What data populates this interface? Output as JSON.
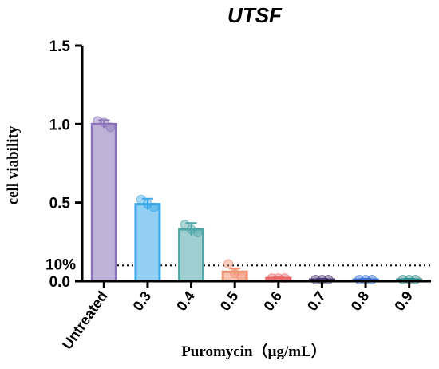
{
  "chart_data": {
    "type": "bar",
    "title": "UTSF",
    "xlabel": "Puromycin（µg/mL）",
    "ylabel": "cell viability",
    "ylim": [
      0,
      1.5
    ],
    "yticks": [
      "0.0",
      "0.5",
      "1.0",
      "1.5"
    ],
    "categories": [
      "Untreated",
      "0.3",
      "0.4",
      "0.5",
      "0.6",
      "0.7",
      "0.8",
      "0.9"
    ],
    "values": [
      1.0,
      0.49,
      0.33,
      0.06,
      0.02,
      0.01,
      0.01,
      0.01
    ],
    "errors": [
      0.025,
      0.035,
      0.04,
      0.02,
      0.005,
      0.005,
      0.005,
      0.005
    ],
    "points": [
      [
        1.02,
        1.01,
        0.98
      ],
      [
        0.52,
        0.49,
        0.47
      ],
      [
        0.36,
        0.33,
        0.31
      ],
      [
        0.11,
        0.05,
        0.03
      ],
      [
        0.02,
        0.02,
        0.02
      ],
      [
        0.01,
        0.01,
        0.01
      ],
      [
        0.01,
        0.01,
        0.01
      ],
      [
        0.01,
        0.01,
        0.01
      ]
    ],
    "colors": [
      "#8a73b8",
      "#3aa7e8",
      "#4fa6a8",
      "#f29071",
      "#e8686a",
      "#4a3570",
      "#3b6fd6",
      "#2f8c8c"
    ],
    "reference_line": {
      "value": 0.1,
      "label": "10%",
      "style": "dotted"
    },
    "grid": false,
    "legend": "none"
  }
}
